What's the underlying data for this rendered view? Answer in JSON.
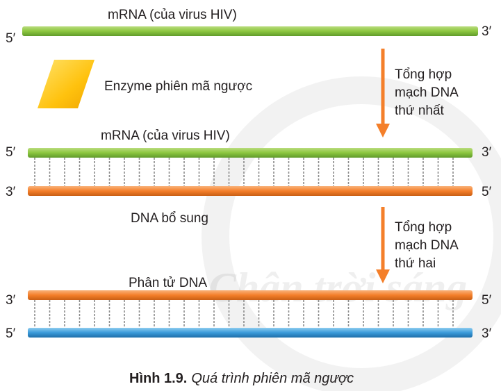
{
  "stage1": {
    "strand_label": "mRNA (của virus HIV)",
    "left_end": "5′",
    "right_end": "3′"
  },
  "enzyme": {
    "label": "Enzyme phiên mã ngược"
  },
  "step1": {
    "lines": [
      "Tổng hợp",
      "mạch DNA",
      "thứ nhất"
    ]
  },
  "stage2": {
    "strand_label": "mRNA (của virus HIV)",
    "top_left": "5′",
    "top_right": "3′",
    "bottom_left": "3′",
    "bottom_right": "5′",
    "bottom_label": "DNA bổ sung"
  },
  "step2": {
    "lines": [
      "Tổng hợp",
      "mạch DNA",
      "thứ hai"
    ]
  },
  "stage3": {
    "label": "Phân tử DNA",
    "top_left": "3′",
    "top_right": "5′",
    "bottom_left": "5′",
    "bottom_right": "3′"
  },
  "caption": {
    "number": "Hình 1.9.",
    "text": "Quá trình phiên mã ngược"
  },
  "watermark": "Chân trời sáng"
}
